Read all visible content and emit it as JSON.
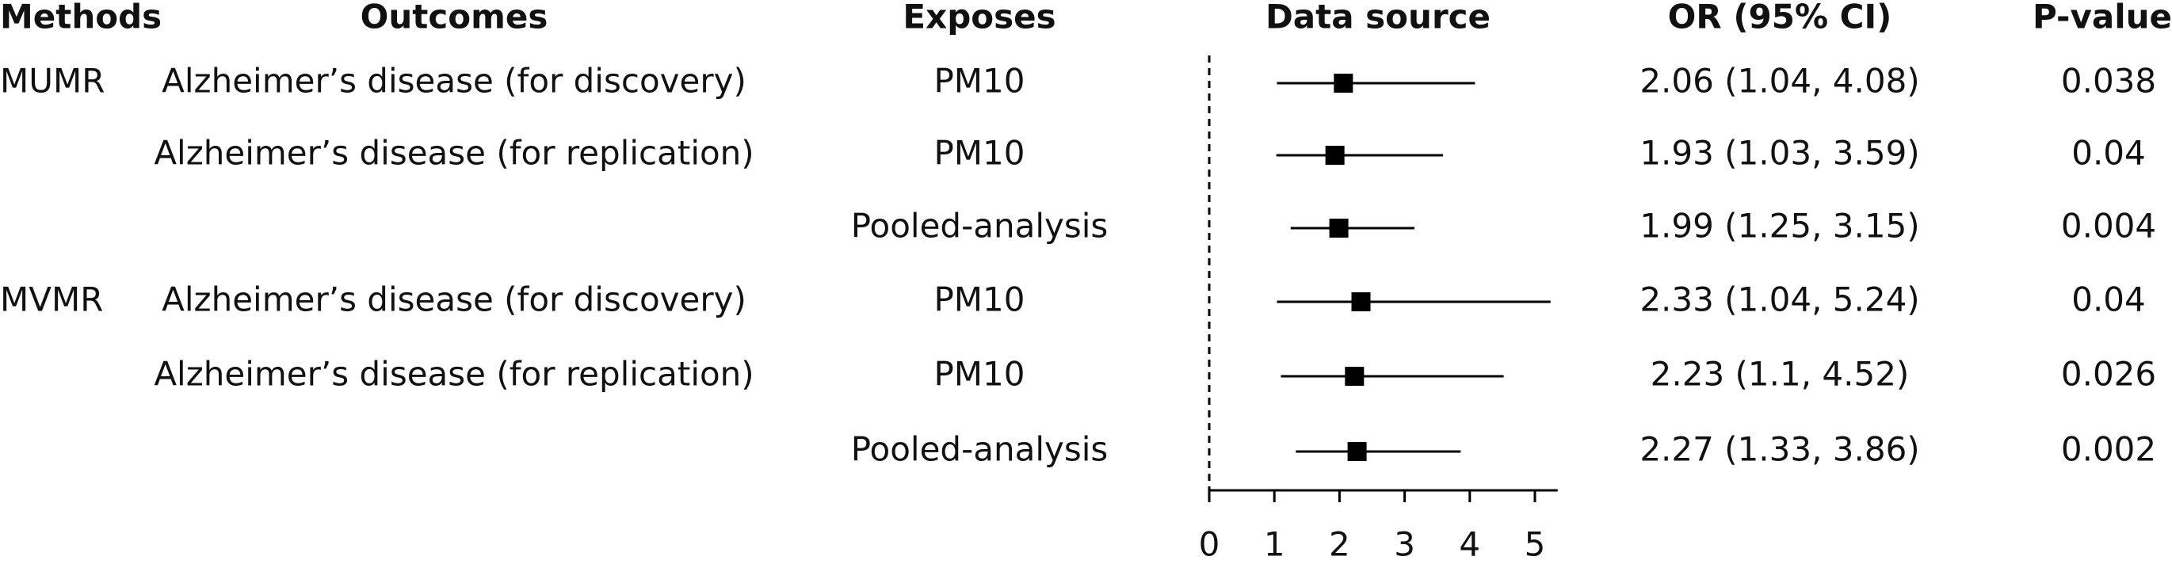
{
  "chart_data": {
    "type": "forest",
    "headers": [
      "Methods",
      "Outcomes",
      "Exposes",
      "Data source",
      "OR (95% CI)",
      "P-value"
    ],
    "methods": [
      "MUMR",
      null,
      null,
      "MVMR",
      null,
      null
    ],
    "outcomes": [
      "Alzheimer’s disease (for discovery)",
      "Alzheimer’s disease (for replication)",
      null,
      "Alzheimer’s disease (for discovery)",
      "Alzheimer’s disease (for replication)",
      null
    ],
    "exposes": [
      "PM10",
      "PM10",
      "Pooled-analysis",
      "PM10",
      "PM10",
      "Pooled-analysis"
    ],
    "values": [
      2.06,
      1.93,
      1.99,
      2.33,
      2.23,
      2.27
    ],
    "lower": [
      1.04,
      1.03,
      1.25,
      1.04,
      1.1,
      1.33
    ],
    "upper": [
      4.08,
      3.59,
      3.15,
      5.24,
      4.52,
      3.86
    ],
    "value_labels": [
      "2.06 (1.04, 4.08)",
      "1.93 (1.03, 3.59)",
      "1.99 (1.25, 3.15)",
      "2.33 (1.04, 5.24)",
      "2.23 (1.1, 4.52)",
      "2.27 (1.33, 3.86)"
    ],
    "p_values": [
      0.038,
      0.04,
      0.004,
      0.04,
      0.026,
      0.002
    ],
    "xlim": [
      0,
      5.35
    ],
    "xticks": [
      0,
      1,
      2,
      3,
      4,
      5
    ],
    "color": "#000000"
  }
}
